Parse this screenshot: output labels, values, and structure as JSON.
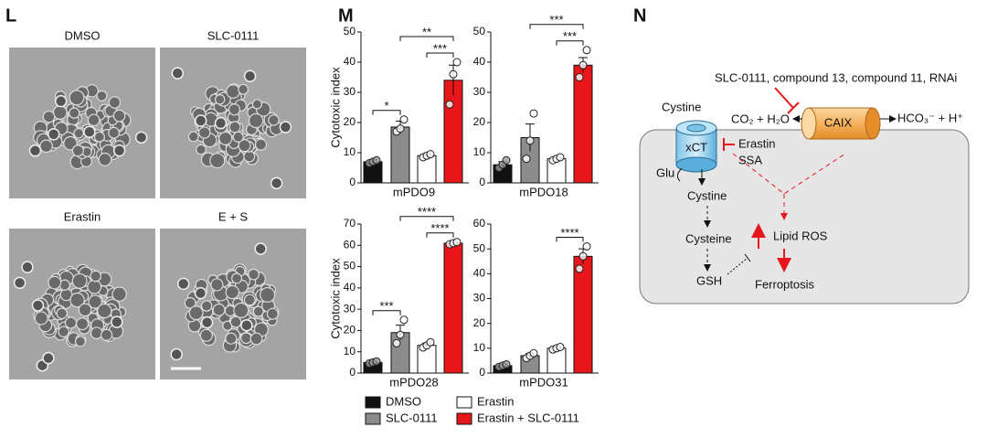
{
  "panels": {
    "l": "L",
    "m": "M",
    "n": "N"
  },
  "images": [
    "DMSO",
    "SLC-0111",
    "Erastin",
    "E + S"
  ],
  "legend": [
    {
      "name": "DMSO",
      "color": "#111111"
    },
    {
      "name": "SLC-0111",
      "color": "#8c8c8c"
    },
    {
      "name": "Erastin",
      "color": "#ffffff"
    },
    {
      "name": "Erastin + SLC-0111",
      "color": "#e8161b"
    }
  ],
  "chart_data": [
    {
      "type": "bar",
      "ylabel": "Cytotoxic index",
      "xlabel": "mPDO9",
      "values": [
        7,
        18.5,
        9,
        34
      ],
      "errors": [
        0.7,
        2,
        0.5,
        5
      ],
      "points": [
        [
          6.5,
          7,
          7.5
        ],
        [
          17,
          18,
          21
        ],
        [
          8.5,
          9,
          9.5
        ],
        [
          26,
          36,
          40
        ]
      ],
      "ylim": [
        0,
        50
      ],
      "yticks": [
        0,
        10,
        20,
        30,
        40,
        50
      ],
      "annotations": [
        {
          "label": "*",
          "bars": [
            0,
            1
          ]
        },
        {
          "label": "***",
          "bars": [
            2,
            3
          ]
        },
        {
          "label": "**",
          "bars": [
            1,
            3
          ]
        }
      ]
    },
    {
      "type": "bar",
      "ylabel": null,
      "xlabel": "mPDO18",
      "values": [
        6,
        15,
        8,
        39
      ],
      "errors": [
        1,
        4.5,
        0.5,
        2.5
      ],
      "points": [
        [
          5,
          6,
          7.5
        ],
        [
          8,
          14,
          23
        ],
        [
          7.5,
          8,
          8.5
        ],
        [
          35,
          39,
          44
        ]
      ],
      "ylim": [
        0,
        50
      ],
      "yticks": [
        0,
        10,
        20,
        30,
        40,
        50
      ],
      "annotations": [
        {
          "label": "***",
          "bars": [
            2,
            3
          ]
        },
        {
          "label": "***",
          "bars": [
            1,
            3
          ]
        }
      ]
    },
    {
      "type": "bar",
      "ylabel": "Cytotoxic index",
      "xlabel": "mPDO28",
      "values": [
        5,
        19,
        13,
        61
      ],
      "errors": [
        0.5,
        3.5,
        1,
        0.5
      ],
      "points": [
        [
          4.5,
          5,
          5.5
        ],
        [
          14,
          18,
          25
        ],
        [
          12,
          13,
          14.5
        ],
        [
          60.5,
          61,
          61.5
        ]
      ],
      "ylim": [
        0,
        70
      ],
      "yticks": [
        0,
        10,
        20,
        30,
        40,
        50,
        60,
        70
      ],
      "annotations": [
        {
          "label": "***",
          "bars": [
            0,
            1
          ]
        },
        {
          "label": "****",
          "bars": [
            2,
            3
          ]
        },
        {
          "label": "****",
          "bars": [
            1,
            3
          ]
        }
      ]
    },
    {
      "type": "bar",
      "ylabel": null,
      "xlabel": "mPDO31",
      "values": [
        3,
        7,
        10,
        47
      ],
      "errors": [
        0.5,
        0.8,
        0.5,
        3
      ],
      "points": [
        [
          2.5,
          3,
          3.5
        ],
        [
          6,
          7,
          8
        ],
        [
          9.5,
          10,
          10.5
        ],
        [
          42,
          47,
          51
        ]
      ],
      "ylim": [
        0,
        60
      ],
      "yticks": [
        0,
        10,
        20,
        30,
        40,
        50,
        60
      ],
      "annotations": [
        {
          "label": "****",
          "bars": [
            2,
            3
          ]
        }
      ]
    }
  ],
  "diagram": {
    "inhibitors": "SLC-0111, compound 13, compound 11, RNAi",
    "cystine_out": "Cystine",
    "xct": "xCT",
    "co2": "CO₂ + H₂O",
    "caix": "CAIX",
    "hco3": "HCO₃⁻ + H⁺",
    "erastin": "Erastin",
    "ssa": "SSA",
    "glu": "Glu",
    "cystine_in": "Cystine",
    "cysteine": "Cysteine",
    "gsh": "GSH",
    "lipid_ros": "Lipid ROS",
    "ferroptosis": "Ferroptosis"
  }
}
